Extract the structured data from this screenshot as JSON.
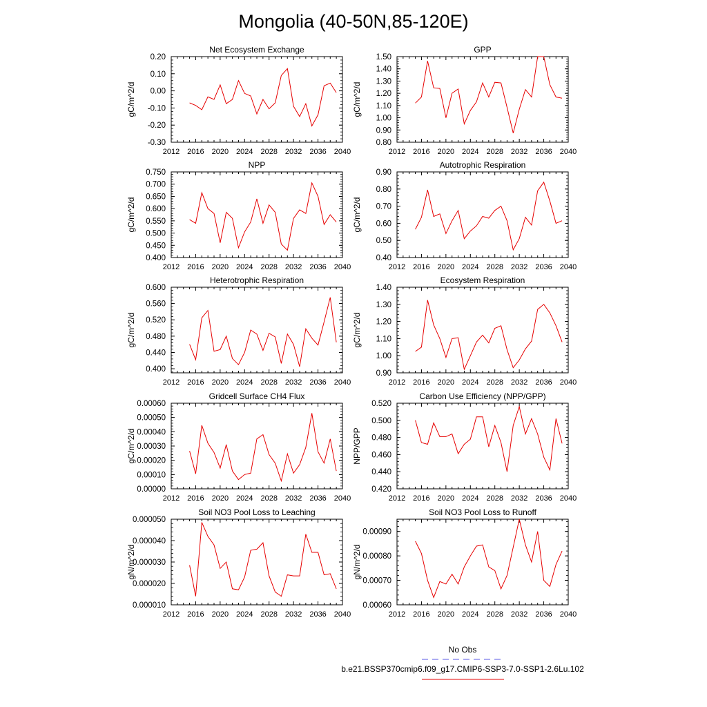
{
  "figure_title": "Mongolia (40-50N,85-120E)",
  "legend": [
    {
      "label": "No Obs",
      "color": "#5a5ae6",
      "dash": true
    },
    {
      "label": "b.e21.BSSP370cmip6.f09_g17.CMIP6-SSP3-7.0-SSP1-2.6Lu.102",
      "color": "#e60000",
      "dash": false
    }
  ],
  "line_color": "#e60000",
  "x_years": [
    2015,
    2016,
    2017,
    2018,
    2019,
    2020,
    2021,
    2022,
    2023,
    2024,
    2025,
    2026,
    2027,
    2028,
    2029,
    2030,
    2031,
    2032,
    2033,
    2034,
    2035,
    2036,
    2037,
    2038,
    2039
  ],
  "chart_data": [
    {
      "type": "line",
      "title": "Net Ecosystem Exchange",
      "ylabel": "gC/m^2/d",
      "xlim": [
        2012,
        2040
      ],
      "ylim": [
        -0.3,
        0.2
      ],
      "xticks": [
        "2012",
        "2016",
        "2020",
        "2024",
        "2028",
        "2032",
        "2036",
        "2040"
      ],
      "yticks": [
        "-0.30",
        "-0.20",
        "-0.10",
        "0.00",
        "0.10",
        "0.20"
      ],
      "values": [
        -0.07,
        -0.085,
        -0.11,
        -0.035,
        -0.05,
        0.035,
        -0.075,
        -0.05,
        0.06,
        -0.015,
        -0.03,
        -0.135,
        -0.05,
        -0.105,
        -0.07,
        0.09,
        0.13,
        -0.09,
        -0.15,
        -0.075,
        -0.205,
        -0.14,
        0.03,
        0.045,
        -0.01
      ]
    },
    {
      "type": "line",
      "title": "GPP",
      "ylabel": "gC/m^2/d",
      "xlim": [
        2012,
        2040
      ],
      "ylim": [
        0.8,
        1.5
      ],
      "xticks": [
        "2012",
        "2016",
        "2020",
        "2024",
        "2028",
        "2032",
        "2036",
        "2040"
      ],
      "yticks": [
        "0.80",
        "0.90",
        "1.00",
        "1.10",
        "1.20",
        "1.30",
        "1.40",
        "1.50"
      ],
      "values": [
        1.12,
        1.17,
        1.465,
        1.245,
        1.24,
        1.0,
        1.2,
        1.235,
        0.95,
        1.06,
        1.13,
        1.285,
        1.17,
        1.29,
        1.285,
        1.085,
        0.875,
        1.07,
        1.23,
        1.17,
        1.5,
        1.5,
        1.27,
        1.17,
        1.16
      ]
    },
    {
      "type": "line",
      "title": "NPP",
      "ylabel": "gC/m^2/d",
      "xlim": [
        2012,
        2040
      ],
      "ylim": [
        0.4,
        0.75
      ],
      "xticks": [
        "2012",
        "2016",
        "2020",
        "2024",
        "2028",
        "2032",
        "2036",
        "2040"
      ],
      "yticks": [
        "0.400",
        "0.450",
        "0.500",
        "0.550",
        "0.600",
        "0.650",
        "0.700",
        "0.750"
      ],
      "values": [
        0.555,
        0.54,
        0.665,
        0.6,
        0.58,
        0.46,
        0.585,
        0.56,
        0.44,
        0.505,
        0.545,
        0.64,
        0.54,
        0.615,
        0.585,
        0.455,
        0.43,
        0.56,
        0.595,
        0.58,
        0.705,
        0.65,
        0.535,
        0.575,
        0.545
      ]
    },
    {
      "type": "line",
      "title": "Autotrophic Respiration",
      "ylabel": "gC/m^2/d",
      "xlim": [
        2012,
        2040
      ],
      "ylim": [
        0.4,
        0.9
      ],
      "xticks": [
        "2012",
        "2016",
        "2020",
        "2024",
        "2028",
        "2032",
        "2036",
        "2040"
      ],
      "yticks": [
        "0.40",
        "0.50",
        "0.60",
        "0.70",
        "0.80",
        "0.90"
      ],
      "values": [
        0.565,
        0.635,
        0.795,
        0.64,
        0.655,
        0.54,
        0.615,
        0.675,
        0.51,
        0.555,
        0.585,
        0.64,
        0.63,
        0.675,
        0.7,
        0.615,
        0.445,
        0.51,
        0.635,
        0.59,
        0.79,
        0.84,
        0.73,
        0.6,
        0.615
      ]
    },
    {
      "type": "line",
      "title": "Heterotrophic Respiration",
      "ylabel": "gC/m^2/d",
      "xlim": [
        2012,
        2040
      ],
      "ylim": [
        0.39,
        0.6
      ],
      "xticks": [
        "2012",
        "2016",
        "2020",
        "2024",
        "2028",
        "2032",
        "2036",
        "2040"
      ],
      "yticks": [
        "0.400",
        "0.440",
        "0.480",
        "0.520",
        "0.560",
        "0.600"
      ],
      "values": [
        0.46,
        0.422,
        0.525,
        0.543,
        0.443,
        0.447,
        0.48,
        0.425,
        0.41,
        0.44,
        0.495,
        0.485,
        0.445,
        0.487,
        0.478,
        0.413,
        0.485,
        0.46,
        0.405,
        0.498,
        0.475,
        0.458,
        0.515,
        0.575,
        0.465
      ]
    },
    {
      "type": "line",
      "title": "Ecosystem Respiration",
      "ylabel": "gC/m^2/d",
      "xlim": [
        2012,
        2040
      ],
      "ylim": [
        0.9,
        1.4
      ],
      "xticks": [
        "2012",
        "2016",
        "2020",
        "2024",
        "2028",
        "2032",
        "2036",
        "2040"
      ],
      "yticks": [
        "0.90",
        "1.00",
        "1.10",
        "1.20",
        "1.30",
        "1.40"
      ],
      "values": [
        1.025,
        1.05,
        1.325,
        1.18,
        1.1,
        0.99,
        1.1,
        1.105,
        0.92,
        1.0,
        1.08,
        1.12,
        1.075,
        1.16,
        1.175,
        1.035,
        0.93,
        0.975,
        1.04,
        1.085,
        1.27,
        1.3,
        1.25,
        1.175,
        1.08
      ]
    },
    {
      "type": "line",
      "title": "Gridcell Surface CH4 Flux",
      "ylabel": "gC/m^2/d",
      "xlim": [
        2012,
        2040
      ],
      "ylim": [
        0.0,
        0.0006
      ],
      "xticks": [
        "2012",
        "2016",
        "2020",
        "2024",
        "2028",
        "2032",
        "2036",
        "2040"
      ],
      "yticks": [
        "0.00000",
        "0.00010",
        "0.00020",
        "0.00030",
        "0.00040",
        "0.00050",
        "0.00060"
      ],
      "values": [
        0.000265,
        0.000105,
        0.000445,
        0.00032,
        0.000255,
        0.000145,
        0.00031,
        0.000125,
        6.5e-05,
        0.0001,
        0.00011,
        0.00035,
        0.00038,
        0.00024,
        0.00018,
        5.5e-05,
        0.000245,
        0.00011,
        0.00017,
        0.00029,
        0.00053,
        0.00026,
        0.00018,
        0.00035,
        0.000125
      ]
    },
    {
      "type": "line",
      "title": "Carbon Use Efficiency (NPP/GPP)",
      "ylabel": "NPP/GPP",
      "xlim": [
        2012,
        2040
      ],
      "ylim": [
        0.42,
        0.52
      ],
      "xticks": [
        "2012",
        "2016",
        "2020",
        "2024",
        "2028",
        "2032",
        "2036",
        "2040"
      ],
      "yticks": [
        "0.420",
        "0.440",
        "0.460",
        "0.480",
        "0.500",
        "0.520"
      ],
      "values": [
        0.5,
        0.474,
        0.472,
        0.497,
        0.481,
        0.481,
        0.484,
        0.461,
        0.472,
        0.478,
        0.504,
        0.504,
        0.469,
        0.494,
        0.474,
        0.44,
        0.494,
        0.516,
        0.484,
        0.502,
        0.484,
        0.457,
        0.442,
        0.502,
        0.473
      ]
    },
    {
      "type": "line",
      "title": "Soil NO3 Pool Loss to Leaching",
      "ylabel": "gN/m^2/d",
      "xlim": [
        2012,
        2040
      ],
      "ylim": [
        1e-05,
        5e-05
      ],
      "xticks": [
        "2012",
        "2016",
        "2020",
        "2024",
        "2028",
        "2032",
        "2036",
        "2040"
      ],
      "yticks": [
        "0.000010",
        "0.000020",
        "0.000030",
        "0.000040",
        "0.000050"
      ],
      "values": [
        2.85e-05,
        1.4e-05,
        4.85e-05,
        4.2e-05,
        3.8e-05,
        2.7e-05,
        3e-05,
        1.75e-05,
        1.7e-05,
        2.3e-05,
        3.55e-05,
        3.6e-05,
        3.9e-05,
        2.35e-05,
        1.6e-05,
        1.4e-05,
        2.4e-05,
        2.35e-05,
        2.35e-05,
        4.3e-05,
        3.45e-05,
        3.45e-05,
        2.4e-05,
        2.45e-05,
        1.75e-05
      ]
    },
    {
      "type": "line",
      "title": "Soil NO3 Pool Loss to Runoff",
      "ylabel": "gN/m^2/d",
      "xlim": [
        2012,
        2040
      ],
      "ylim": [
        0.0006,
        0.00095
      ],
      "xticks": [
        "2012",
        "2016",
        "2020",
        "2024",
        "2028",
        "2032",
        "2036",
        "2040"
      ],
      "yticks": [
        "0.00060",
        "0.00070",
        "0.00080",
        "0.00090"
      ],
      "values": [
        0.00086,
        0.00081,
        0.0007,
        0.00063,
        0.000695,
        0.000685,
        0.000725,
        0.000685,
        0.000755,
        0.0008,
        0.00084,
        0.000845,
        0.000755,
        0.00074,
        0.000665,
        0.00072,
        0.000835,
        0.00095,
        0.000845,
        0.000775,
        0.0009,
        0.0007,
        0.000675,
        0.000765,
        0.00082
      ]
    }
  ]
}
